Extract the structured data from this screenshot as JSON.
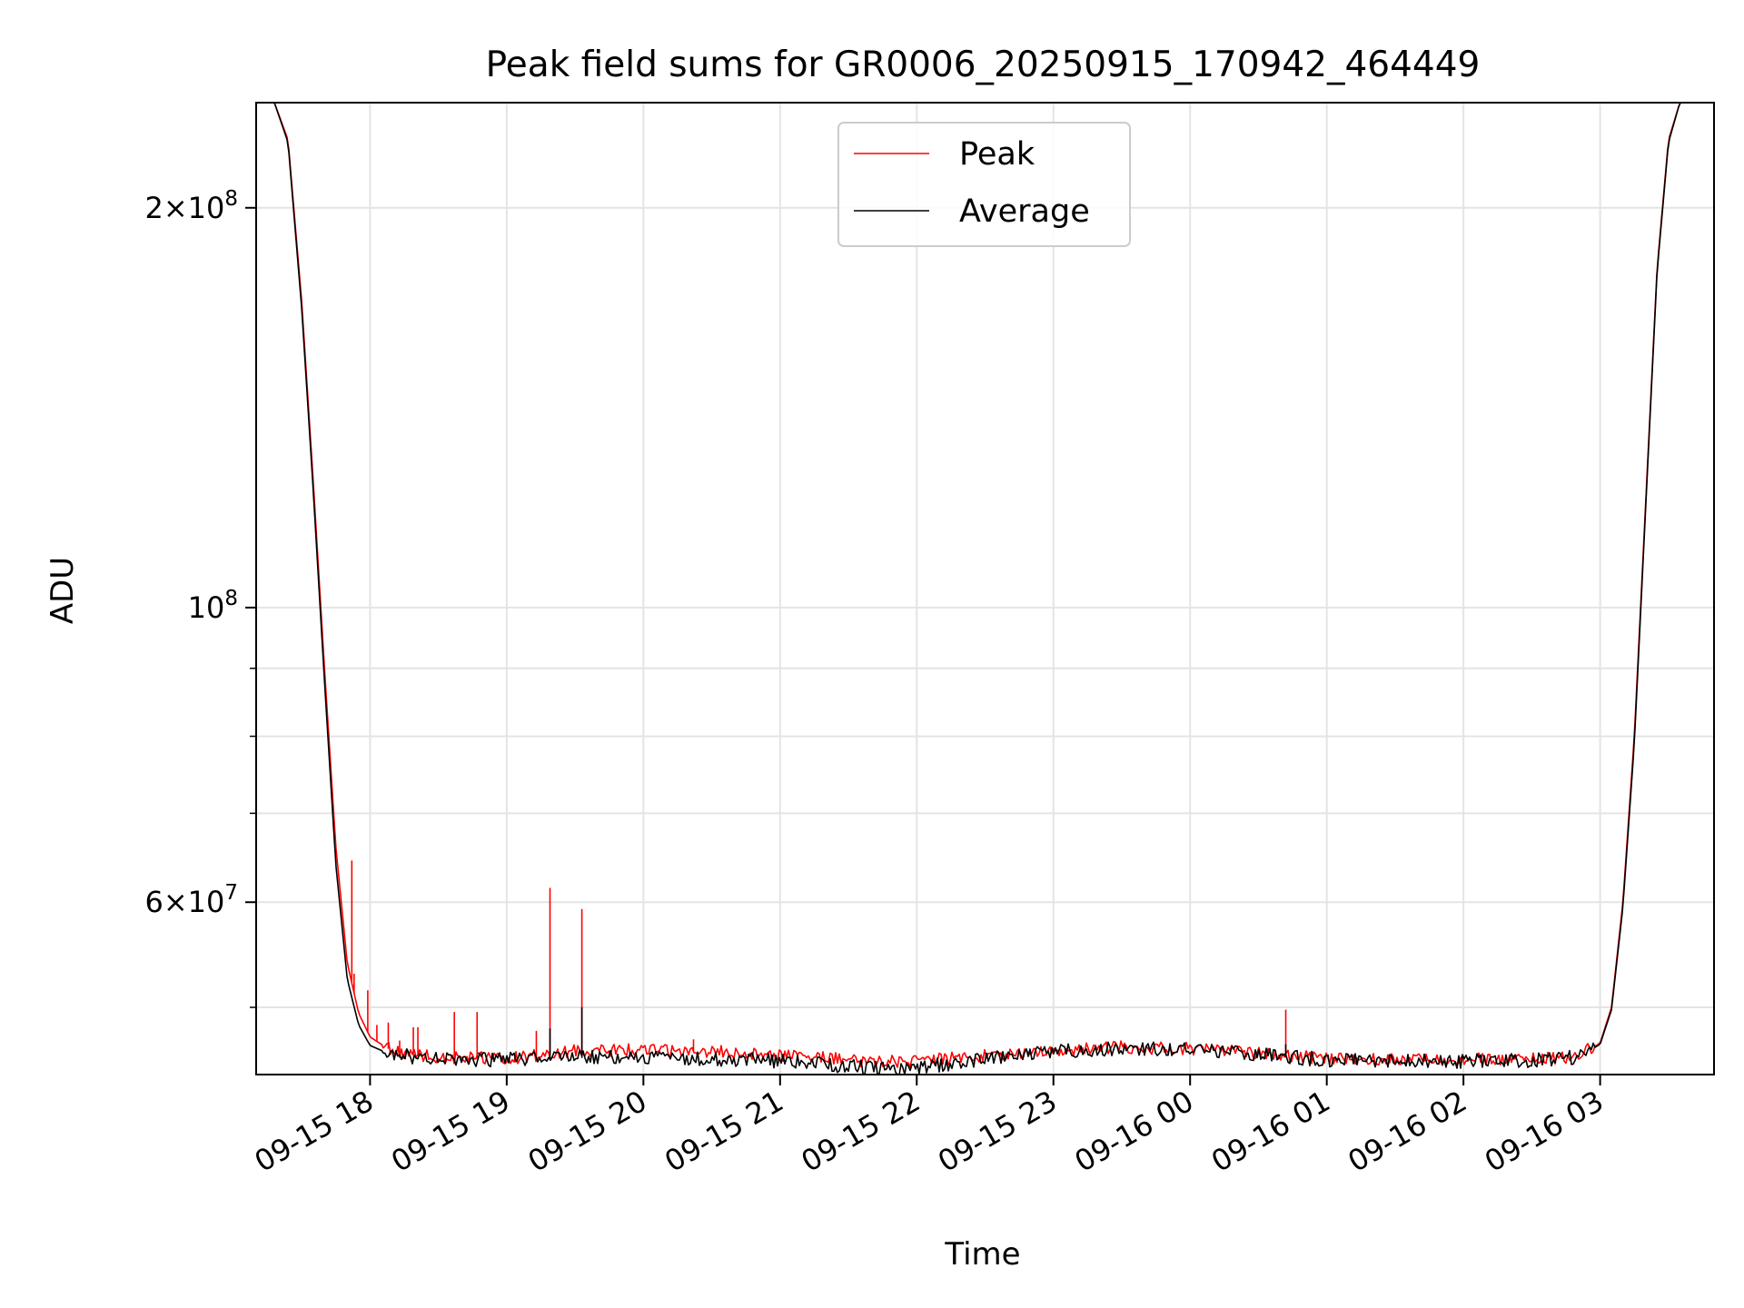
{
  "chart_data": {
    "type": "line",
    "title": "Peak field sums for GR0006_20250915_170942_464449",
    "xlabel": "Time",
    "ylabel": "ADU",
    "y_scale": "log",
    "ylim": [
      44500000,
      240000000
    ],
    "xlim": [
      "2025-09-15 17:10",
      "2025-09-16 03:50"
    ],
    "x_tick_labels": [
      "09-15 18",
      "09-15 19",
      "09-15 20",
      "09-15 21",
      "09-15 22",
      "09-15 23",
      "09-16 00",
      "09-16 01",
      "09-16 02",
      "09-16 03"
    ],
    "x_ticks": [
      "2025-09-15 18:00",
      "2025-09-15 19:00",
      "2025-09-15 20:00",
      "2025-09-15 21:00",
      "2025-09-15 22:00",
      "2025-09-15 23:00",
      "2025-09-16 00:00",
      "2025-09-16 01:00",
      "2025-09-16 02:00",
      "2025-09-16 03:00"
    ],
    "y_major_ticks": [
      {
        "value": 200000000,
        "base": "2×10",
        "exp": "8"
      },
      {
        "value": 100000000,
        "base": "10",
        "exp": "8"
      },
      {
        "value": 60000000,
        "base": "6×10",
        "exp": "7"
      }
    ],
    "y_minor_ticks": [
      50000000,
      70000000,
      80000000,
      90000000
    ],
    "grid": true,
    "legend_position": "top-center",
    "series": [
      {
        "name": "Peak",
        "color": "#ff0000",
        "points": [
          [
            "2025-09-15 17:10",
            240000000
          ],
          [
            "2025-09-15 17:18",
            240000000
          ],
          [
            "2025-09-15 17:24",
            225000000
          ],
          [
            "2025-09-15 17:30",
            170000000
          ],
          [
            "2025-09-15 17:35",
            125000000
          ],
          [
            "2025-09-15 17:40",
            90000000
          ],
          [
            "2025-09-15 17:45",
            66000000
          ],
          [
            "2025-09-15 17:50",
            54000000
          ],
          [
            "2025-09-15 17:55",
            49500000
          ],
          [
            "2025-09-15 18:00",
            47500000
          ],
          [
            "2025-09-15 18:10",
            46300000
          ],
          [
            "2025-09-15 18:30",
            45800000
          ],
          [
            "2025-09-15 19:00",
            45700000
          ],
          [
            "2025-09-15 19:30",
            46300000
          ],
          [
            "2025-09-15 20:00",
            46400000
          ],
          [
            "2025-09-15 20:30",
            46300000
          ],
          [
            "2025-09-15 21:00",
            46000000
          ],
          [
            "2025-09-15 21:30",
            45600000
          ],
          [
            "2025-09-15 21:45",
            45500000
          ],
          [
            "2025-09-15 22:00",
            45500000
          ],
          [
            "2025-09-15 22:30",
            45900000
          ],
          [
            "2025-09-15 23:00",
            46400000
          ],
          [
            "2025-09-15 23:30",
            46600000
          ],
          [
            "2025-09-16 00:00",
            46500000
          ],
          [
            "2025-09-16 00:30",
            46100000
          ],
          [
            "2025-09-16 01:00",
            45700000
          ],
          [
            "2025-09-16 01:30",
            45600000
          ],
          [
            "2025-09-16 02:00",
            45650000
          ],
          [
            "2025-09-16 02:30",
            45650000
          ],
          [
            "2025-09-16 02:50",
            45900000
          ],
          [
            "2025-09-16 03:00",
            47000000
          ],
          [
            "2025-09-16 03:05",
            50000000
          ],
          [
            "2025-09-16 03:10",
            60000000
          ],
          [
            "2025-09-16 03:15",
            80000000
          ],
          [
            "2025-09-16 03:20",
            120000000
          ],
          [
            "2025-09-16 03:25",
            180000000
          ],
          [
            "2025-09-16 03:30",
            225000000
          ],
          [
            "2025-09-16 03:35",
            240000000
          ],
          [
            "2025-09-16 03:50",
            240000000
          ]
        ],
        "spikes": [
          [
            "2025-09-15 17:52",
            64500000
          ],
          [
            "2025-09-15 17:53",
            53000000
          ],
          [
            "2025-09-15 17:59",
            51500000
          ],
          [
            "2025-09-15 18:03",
            48500000
          ],
          [
            "2025-09-15 18:08",
            48700000
          ],
          [
            "2025-09-15 18:13",
            47200000
          ],
          [
            "2025-09-15 18:19",
            48300000
          ],
          [
            "2025-09-15 18:21",
            48300000
          ],
          [
            "2025-09-15 18:37",
            49600000
          ],
          [
            "2025-09-15 18:47",
            49600000
          ],
          [
            "2025-09-15 19:13",
            48000000
          ],
          [
            "2025-09-15 19:19",
            61500000
          ],
          [
            "2025-09-15 19:33",
            59300000
          ],
          [
            "2025-09-15 20:22",
            47300000
          ],
          [
            "2025-09-16 00:42",
            49800000
          ]
        ]
      },
      {
        "name": "Average",
        "color": "#000000",
        "points": [
          [
            "2025-09-15 17:10",
            240000000
          ],
          [
            "2025-09-15 17:18",
            240000000
          ],
          [
            "2025-09-15 17:24",
            224000000
          ],
          [
            "2025-09-15 17:30",
            168000000
          ],
          [
            "2025-09-15 17:35",
            123000000
          ],
          [
            "2025-09-15 17:40",
            88000000
          ],
          [
            "2025-09-15 17:45",
            64000000
          ],
          [
            "2025-09-15 17:50",
            52500000
          ],
          [
            "2025-09-15 17:55",
            48500000
          ],
          [
            "2025-09-15 18:00",
            46800000
          ],
          [
            "2025-09-15 18:10",
            46000000
          ],
          [
            "2025-09-15 18:30",
            45650000
          ],
          [
            "2025-09-15 19:00",
            45600000
          ],
          [
            "2025-09-15 19:30",
            45800000
          ],
          [
            "2025-09-15 20:00",
            45800000
          ],
          [
            "2025-09-15 20:30",
            45700000
          ],
          [
            "2025-09-15 21:00",
            45500000
          ],
          [
            "2025-09-15 21:30",
            45100000
          ],
          [
            "2025-09-15 21:45",
            44900000
          ],
          [
            "2025-09-15 22:00",
            45000000
          ],
          [
            "2025-09-15 22:30",
            45600000
          ],
          [
            "2025-09-15 23:00",
            46300000
          ],
          [
            "2025-09-15 23:30",
            46500000
          ],
          [
            "2025-09-16 00:00",
            46400000
          ],
          [
            "2025-09-16 00:30",
            46000000
          ],
          [
            "2025-09-16 01:00",
            45600000
          ],
          [
            "2025-09-16 01:30",
            45500000
          ],
          [
            "2025-09-16 02:00",
            45500000
          ],
          [
            "2025-09-16 02:30",
            45550000
          ],
          [
            "2025-09-16 02:50",
            45800000
          ],
          [
            "2025-09-16 03:00",
            46900000
          ],
          [
            "2025-09-16 03:05",
            49800000
          ],
          [
            "2025-09-16 03:10",
            59500000
          ],
          [
            "2025-09-16 03:15",
            79000000
          ],
          [
            "2025-09-16 03:20",
            119000000
          ],
          [
            "2025-09-16 03:25",
            179000000
          ],
          [
            "2025-09-16 03:30",
            224000000
          ],
          [
            "2025-09-16 03:35",
            240000000
          ],
          [
            "2025-09-16 03:50",
            240000000
          ]
        ],
        "spikes": [
          [
            "2025-09-15 19:19",
            48200000
          ],
          [
            "2025-09-15 19:33",
            50000000
          ],
          [
            "2025-09-16 00:42",
            46900000
          ]
        ]
      }
    ]
  }
}
